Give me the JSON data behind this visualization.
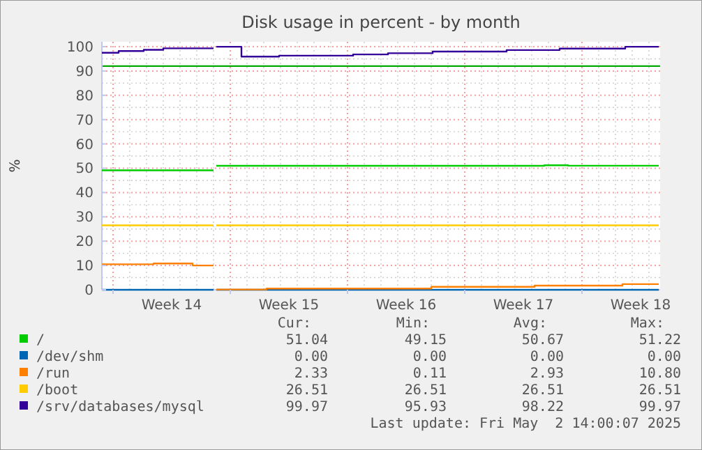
{
  "chart_data": {
    "type": "step",
    "title": "Disk usage in percent - by month",
    "ylabel": "%",
    "x": [
      "2025-03-30T08:00",
      "2025-03-31T08:00",
      "2025-04-01T20:00",
      "2025-04-02T10:00",
      "2025-04-03T00:00",
      "2025-04-04T18:00",
      "2025-04-06T00:00",
      "2025-04-06T02:00",
      "2025-04-06T04:00",
      "2025-04-07T12:00",
      "2025-04-07T16:00",
      "2025-04-09T04:00",
      "2025-04-09T22:00",
      "2025-04-14T08:00",
      "2025-04-16T10:00",
      "2025-04-19T00:00",
      "2025-04-19T02:00",
      "2025-04-23T12:00",
      "2025-04-25T04:00",
      "2025-04-25T18:00",
      "2025-04-26T16:00",
      "2025-04-27T04:00",
      "2025-04-30T10:00",
      "2025-04-30T14:00",
      "2025-05-02T14:00"
    ],
    "series": [
      {
        "name": "/",
        "color": "#00cc00",
        "values": [
          49.15,
          49.15,
          49.15,
          49.15,
          49.15,
          49.15,
          49.15,
          null,
          51.0,
          51.0,
          51.0,
          51.0,
          51.0,
          51.0,
          51.0,
          51.0,
          51.0,
          51.0,
          51.0,
          51.22,
          51.22,
          51.04,
          51.04,
          51.04,
          51.04
        ]
      },
      {
        "name": "/dev/shm",
        "color": "#0066b3",
        "values": [
          0,
          0,
          0,
          0,
          0,
          0,
          0,
          null,
          0,
          0,
          0,
          0,
          0,
          0,
          0,
          0,
          0,
          0,
          0,
          0,
          0,
          0,
          0,
          0,
          0
        ]
      },
      {
        "name": "/run",
        "color": "#ff8000",
        "values": [
          10.5,
          10.5,
          10.5,
          10.8,
          10.8,
          10.0,
          10.0,
          null,
          0.11,
          0.11,
          0.11,
          0.5,
          0.5,
          0.5,
          0.5,
          1.2,
          1.2,
          1.2,
          1.7,
          1.7,
          1.7,
          1.7,
          2.33,
          2.33,
          2.33
        ]
      },
      {
        "name": "/boot",
        "color": "#ffcc00",
        "values": [
          26.51,
          26.51,
          26.51,
          26.51,
          26.51,
          26.51,
          26.51,
          null,
          26.51,
          26.51,
          26.51,
          26.51,
          26.51,
          26.51,
          26.51,
          26.51,
          26.51,
          26.51,
          26.51,
          26.51,
          26.51,
          26.51,
          26.51,
          26.51,
          26.51
        ]
      },
      {
        "name": "/srv/databases/mysql",
        "color": "#330099",
        "values": [
          97.5,
          98.2,
          98.7,
          98.7,
          99.3,
          99.3,
          99.3,
          null,
          99.97,
          99.97,
          95.93,
          95.93,
          96.3,
          96.8,
          97.3,
          97.3,
          98.0,
          98.6,
          98.6,
          98.6,
          99.2,
          99.2,
          99.2,
          99.97,
          99.97
        ]
      }
    ],
    "xlim": [
      "2025-03-30T08:00",
      "2025-05-02T16:00"
    ],
    "xticks": [
      {
        "value": "2025-04-03T12:00",
        "label": "Week 14"
      },
      {
        "value": "2025-04-10T12:00",
        "label": "Week 15"
      },
      {
        "value": "2025-04-17T12:00",
        "label": "Week 16"
      },
      {
        "value": "2025-04-24T12:00",
        "label": "Week 17"
      },
      {
        "value": "2025-05-01T12:00",
        "label": "Week 18"
      }
    ],
    "ylim": [
      0,
      102
    ],
    "yticks": [
      0,
      10,
      20,
      30,
      40,
      50,
      60,
      70,
      80,
      90,
      100
    ],
    "grid": true,
    "legend": "bottom",
    "ref_lines": [
      {
        "axis": "y",
        "value": 92,
        "color": "#00aa00"
      }
    ],
    "annotations": [
      "Cur:",
      "Min:",
      "Avg:",
      "Max:",
      "51.04",
      "49.15",
      "50.67",
      "51.22",
      "0.00",
      "0.00",
      "0.00",
      "0.00",
      "2.33",
      "0.11",
      "2.93",
      "10.80",
      "26.51",
      "26.51",
      "26.51",
      "26.51",
      "99.97",
      "95.93",
      "98.22",
      "99.97",
      "Last update: Fri May  2 14:00:07 2025"
    ]
  }
}
